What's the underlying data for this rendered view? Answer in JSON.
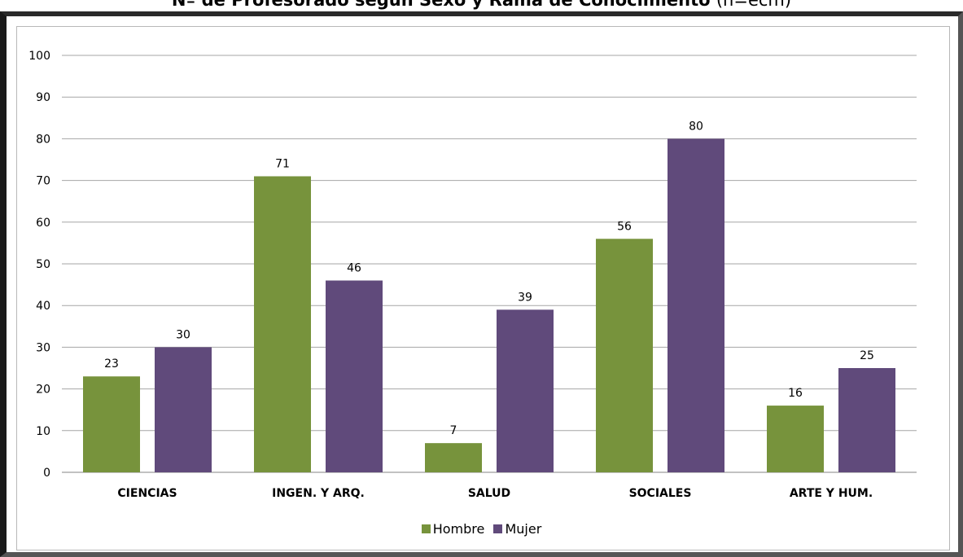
{
  "chart_data": {
    "type": "bar",
    "title": "Nº de Profesorado según Sexo y Rama de Conocimiento",
    "title_suffix": "(n=ecm)",
    "categories": [
      "CIENCIAS",
      "INGEN. Y ARQ.",
      "SALUD",
      "SOCIALES",
      "ARTE Y HUM."
    ],
    "series": [
      {
        "name": "Hombre",
        "color": "#77933c",
        "values": [
          23,
          71,
          7,
          56,
          16
        ]
      },
      {
        "name": "Mujer",
        "color": "#604a7b",
        "values": [
          30,
          46,
          39,
          80,
          25
        ]
      }
    ],
    "ylim": [
      0,
      100
    ],
    "yticks": [
      0,
      10,
      20,
      30,
      40,
      50,
      60,
      70,
      80,
      90,
      100
    ],
    "grid": true,
    "legend_position": "bottom",
    "xlabel": "",
    "ylabel": ""
  }
}
